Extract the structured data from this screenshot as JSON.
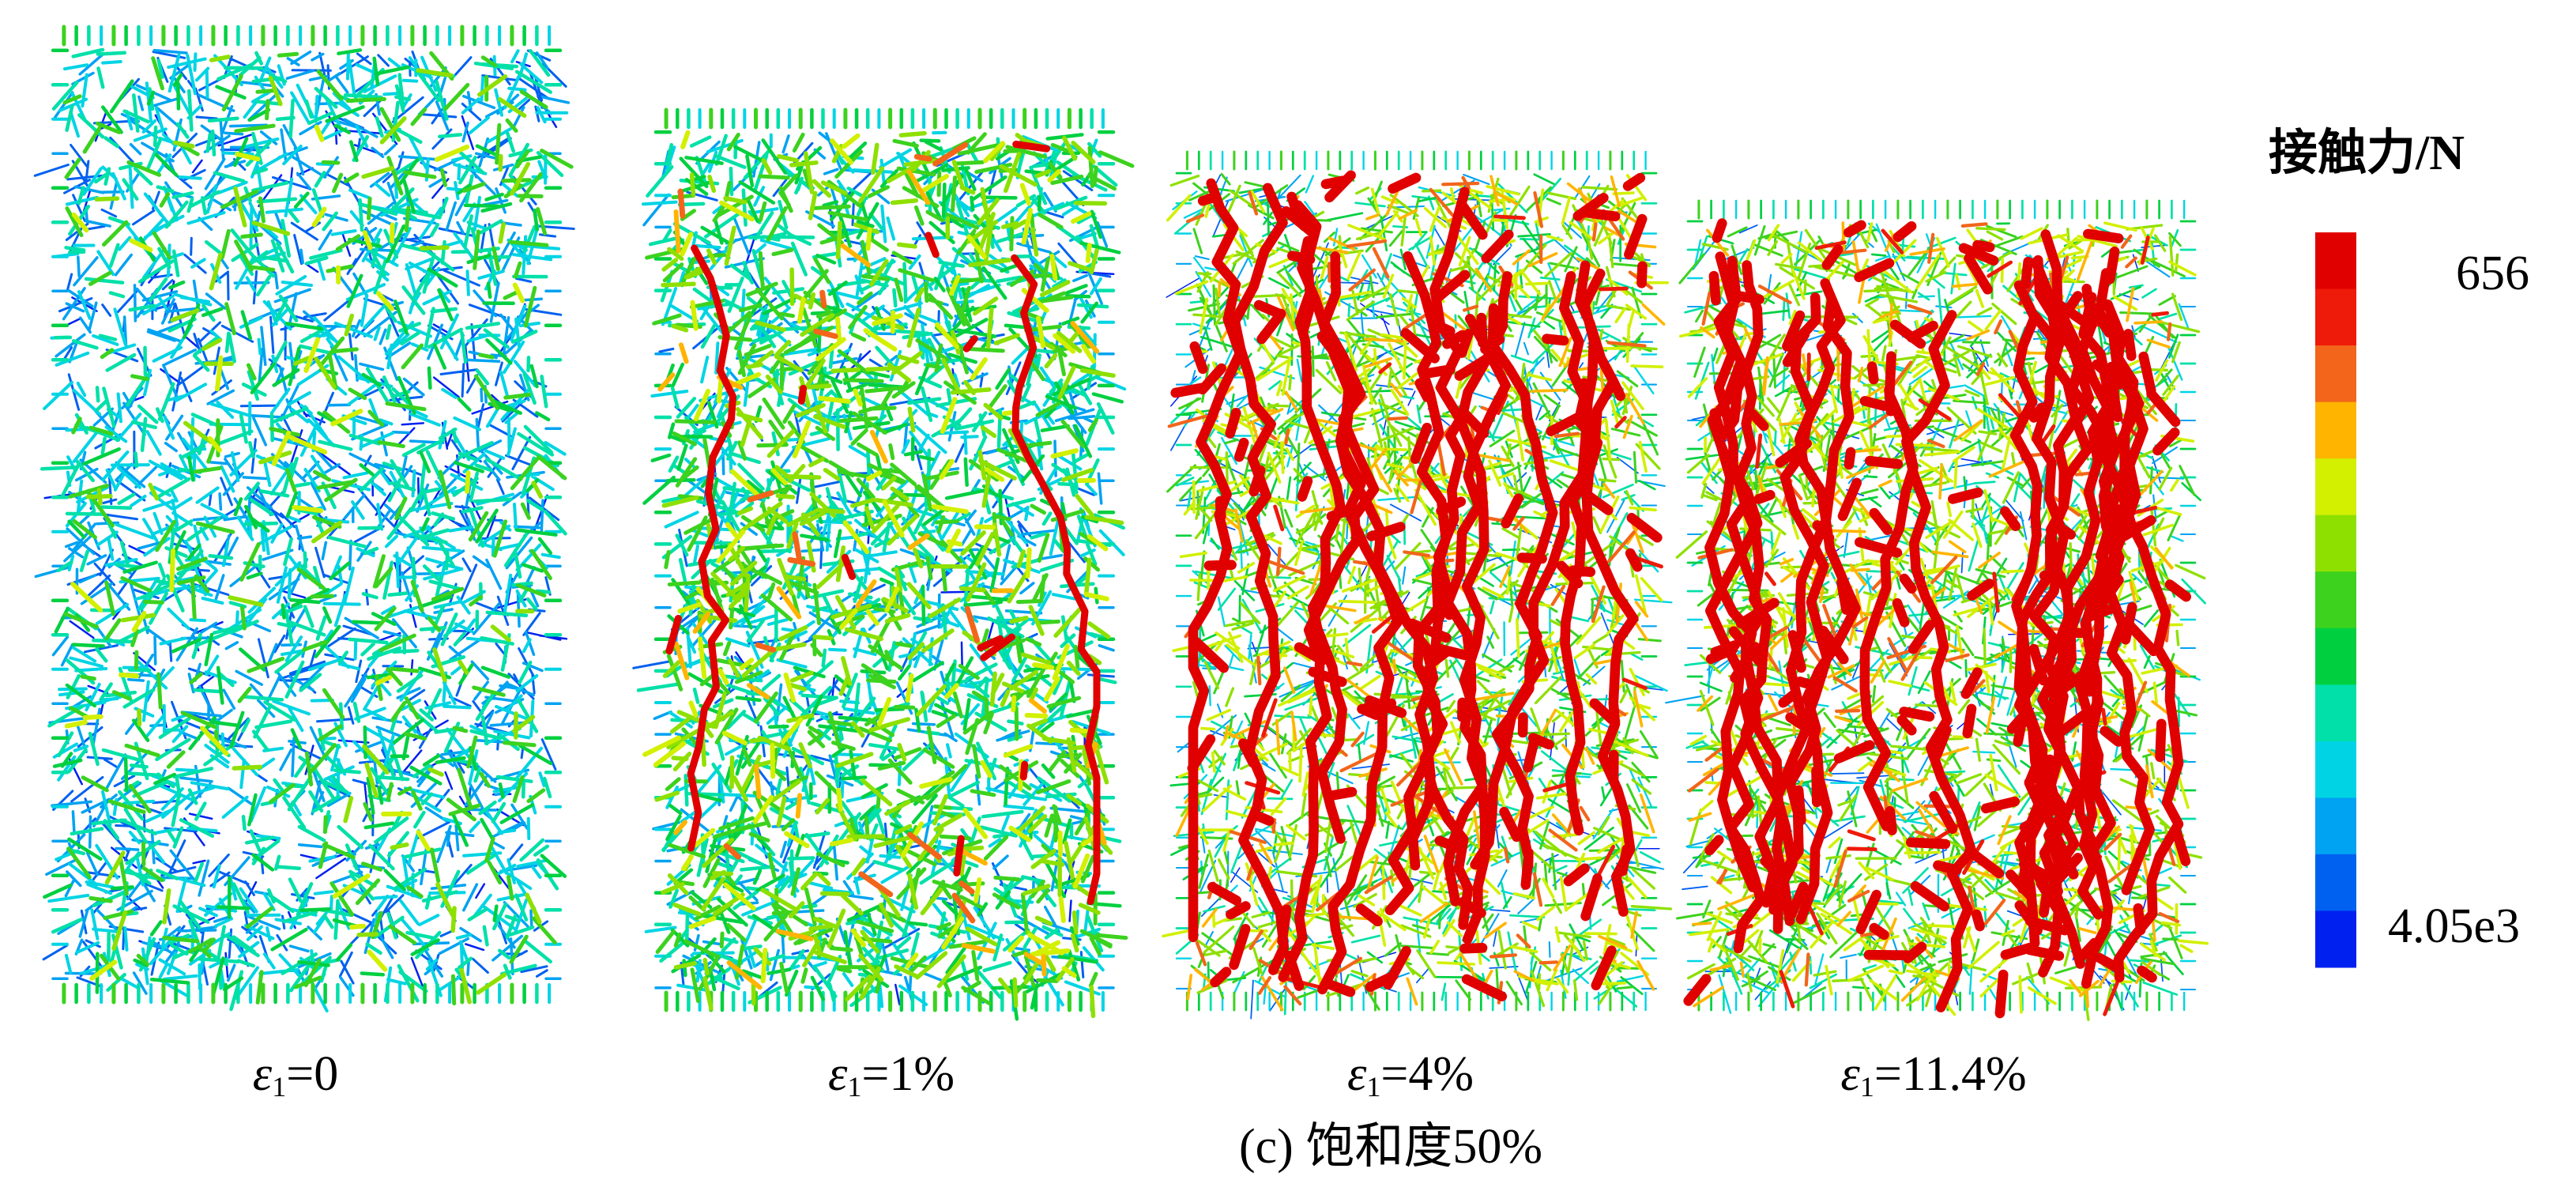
{
  "colorbar": {
    "title": "接触力/N",
    "max_label": "656",
    "min_label": "4.05e3",
    "colors": [
      "#e00000",
      "#ee1a0a",
      "#f2651a",
      "#ffb400",
      "#d2f000",
      "#8ee000",
      "#3cd21e",
      "#00d040",
      "#00e0a8",
      "#00d4e4",
      "#00a2f2",
      "#0060f0",
      "#0020f0"
    ]
  },
  "panels": [
    {
      "symbol": "ε",
      "subscript": "1",
      "value": "=0"
    },
    {
      "symbol": "ε",
      "subscript": "1",
      "value": "=1%"
    },
    {
      "symbol": "ε",
      "subscript": "1",
      "value": "=4%"
    },
    {
      "symbol": "ε",
      "subscript": "1",
      "value": "=11.4%"
    }
  ],
  "caption": "(c) 饱和度50%"
}
